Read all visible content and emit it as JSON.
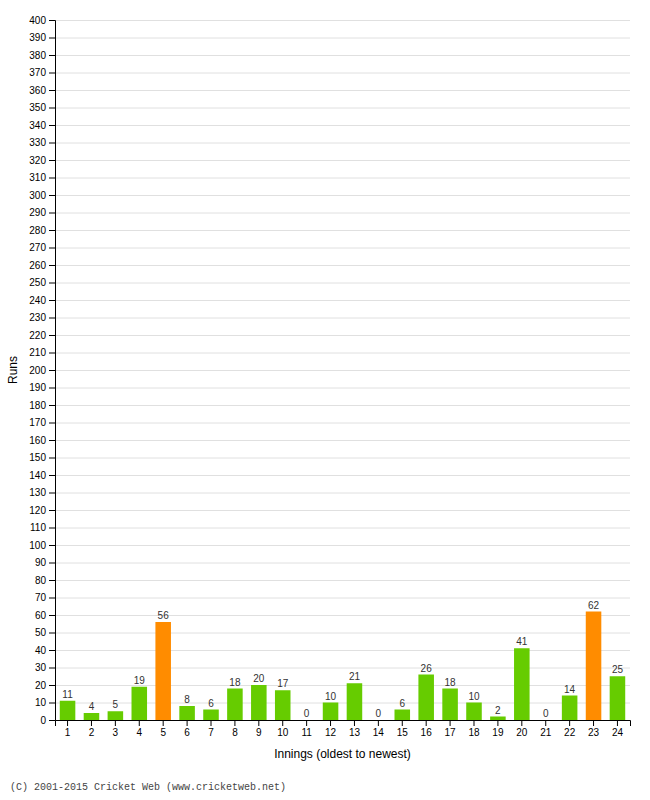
{
  "chart_data": {
    "type": "bar",
    "categories": [
      "1",
      "2",
      "3",
      "4",
      "5",
      "6",
      "7",
      "8",
      "9",
      "10",
      "11",
      "12",
      "13",
      "14",
      "15",
      "16",
      "17",
      "18",
      "19",
      "20",
      "21",
      "22",
      "23",
      "24"
    ],
    "values": [
      11,
      4,
      5,
      19,
      56,
      8,
      6,
      18,
      20,
      17,
      0,
      10,
      21,
      0,
      6,
      26,
      18,
      10,
      2,
      41,
      0,
      14,
      62,
      25
    ],
    "colors": [
      "#66cc00",
      "#66cc00",
      "#66cc00",
      "#66cc00",
      "#ff8c00",
      "#66cc00",
      "#66cc00",
      "#66cc00",
      "#66cc00",
      "#66cc00",
      "#66cc00",
      "#66cc00",
      "#66cc00",
      "#66cc00",
      "#66cc00",
      "#66cc00",
      "#66cc00",
      "#66cc00",
      "#66cc00",
      "#66cc00",
      "#66cc00",
      "#66cc00",
      "#ff8c00",
      "#66cc00"
    ],
    "xlabel": "Innings (oldest to newest)",
    "ylabel": "Runs",
    "ylim": [
      0,
      400
    ],
    "yticks": [
      0,
      10,
      20,
      30,
      40,
      50,
      60,
      70,
      80,
      90,
      100,
      110,
      120,
      130,
      140,
      150,
      160,
      170,
      180,
      190,
      200,
      210,
      220,
      230,
      240,
      250,
      260,
      270,
      280,
      290,
      300,
      310,
      320,
      330,
      340,
      350,
      360,
      370,
      380,
      390,
      400
    ],
    "grid": true,
    "data_labels": true,
    "footer": "(C) 2001-2015 Cricket Web (www.cricketweb.net)"
  }
}
